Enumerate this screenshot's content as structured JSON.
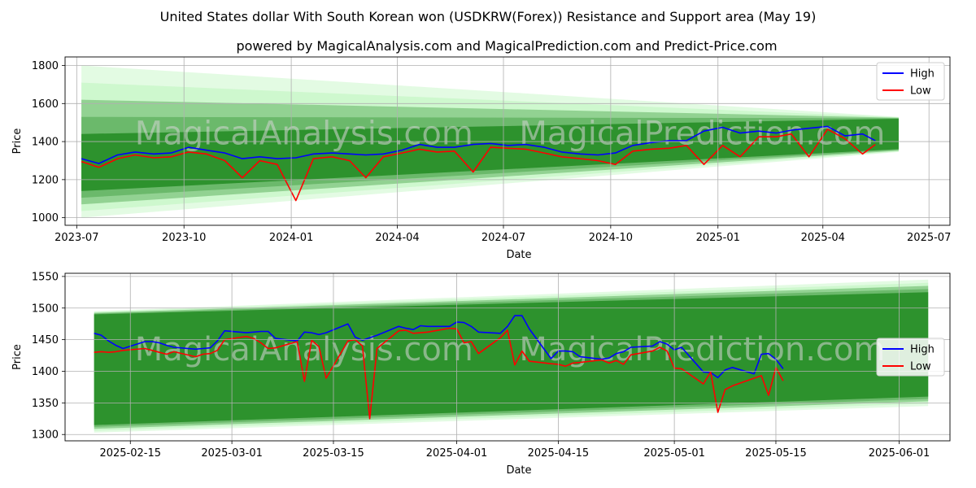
{
  "title": "United States dollar With South Korean won (USDKRW(Forex)) Resistance and Support area (May 19)",
  "subtitle": "powered by MagicalAnalysis.com and MagicalPrediction.com and Predict-Price.com",
  "watermark": {
    "left": "MagicalAnalysis.com",
    "right": "MagicalPrediction.com"
  },
  "colors": {
    "high": "#0000ff",
    "low": "#ff0000",
    "band_dark": "#228b22",
    "band_light": "#90ee90"
  },
  "chart_data": [
    {
      "type": "line",
      "xlabel": "Date",
      "ylabel": "Price",
      "x_ticks": [
        "2023-07",
        "2023-10",
        "2024-01",
        "2024-04",
        "2024-07",
        "2024-10",
        "2025-01",
        "2025-04",
        "2025-07"
      ],
      "y_ticks": [
        1000,
        1200,
        1400,
        1600,
        1800
      ],
      "xlim": [
        "2023-06-21",
        "2025-07-19"
      ],
      "ylim": [
        960,
        1845
      ],
      "grid": true,
      "legend": "top-right",
      "bands": {
        "x": [
          "2023-07-05",
          "2025-06-05"
        ],
        "outer_top": [
          1800,
          1530
        ],
        "outer_bottom": [
          1000,
          1345
        ],
        "inner_top": [
          1440,
          1520
        ],
        "inner_bottom": [
          1140,
          1360
        ]
      },
      "series": [
        {
          "name": "High",
          "x": [
            "2023-07-05",
            "2023-07-20",
            "2023-08-05",
            "2023-08-20",
            "2023-09-05",
            "2023-09-20",
            "2023-10-05",
            "2023-10-20",
            "2023-11-05",
            "2023-11-20",
            "2023-12-05",
            "2023-12-20",
            "2024-01-05",
            "2024-01-20",
            "2024-02-05",
            "2024-02-20",
            "2024-03-05",
            "2024-03-20",
            "2024-04-05",
            "2024-04-20",
            "2024-05-05",
            "2024-05-20",
            "2024-06-05",
            "2024-06-20",
            "2024-07-05",
            "2024-07-20",
            "2024-08-05",
            "2024-08-20",
            "2024-09-05",
            "2024-09-20",
            "2024-10-05",
            "2024-10-20",
            "2024-11-05",
            "2024-11-20",
            "2024-12-05",
            "2024-12-20",
            "2025-01-05",
            "2025-01-20",
            "2025-02-05",
            "2025-02-20",
            "2025-03-05",
            "2025-03-20",
            "2025-04-05",
            "2025-04-20",
            "2025-05-05",
            "2025-05-16"
          ],
          "values": [
            1310,
            1285,
            1330,
            1345,
            1335,
            1340,
            1370,
            1355,
            1340,
            1310,
            1320,
            1310,
            1315,
            1335,
            1340,
            1335,
            1330,
            1335,
            1355,
            1385,
            1370,
            1370,
            1385,
            1390,
            1380,
            1385,
            1370,
            1345,
            1335,
            1330,
            1340,
            1380,
            1395,
            1405,
            1405,
            1455,
            1475,
            1445,
            1455,
            1445,
            1460,
            1470,
            1480,
            1430,
            1440,
            1405
          ]
        },
        {
          "name": "Low",
          "x": [
            "2023-07-05",
            "2023-07-20",
            "2023-08-05",
            "2023-08-20",
            "2023-09-05",
            "2023-09-20",
            "2023-10-05",
            "2023-10-20",
            "2023-11-05",
            "2023-11-20",
            "2023-12-05",
            "2023-12-20",
            "2024-01-05",
            "2024-01-20",
            "2024-02-05",
            "2024-02-20",
            "2024-03-05",
            "2024-03-20",
            "2024-04-05",
            "2024-04-20",
            "2024-05-05",
            "2024-05-20",
            "2024-06-05",
            "2024-06-20",
            "2024-07-05",
            "2024-07-20",
            "2024-08-05",
            "2024-08-20",
            "2024-09-05",
            "2024-09-20",
            "2024-10-05",
            "2024-10-20",
            "2024-11-05",
            "2024-11-20",
            "2024-12-05",
            "2024-12-20",
            "2025-01-05",
            "2025-01-20",
            "2025-02-05",
            "2025-02-20",
            "2025-03-05",
            "2025-03-20",
            "2025-04-05",
            "2025-04-20",
            "2025-05-05",
            "2025-05-16"
          ],
          "values": [
            1295,
            1265,
            1310,
            1330,
            1315,
            1320,
            1345,
            1335,
            1300,
            1210,
            1300,
            1280,
            1090,
            1310,
            1320,
            1300,
            1210,
            1320,
            1340,
            1360,
            1345,
            1350,
            1240,
            1370,
            1365,
            1360,
            1340,
            1320,
            1310,
            1300,
            1280,
            1350,
            1360,
            1365,
            1380,
            1280,
            1380,
            1320,
            1425,
            1425,
            1440,
            1320,
            1465,
            1415,
            1335,
            1385
          ]
        }
      ]
    },
    {
      "type": "line",
      "xlabel": "Date",
      "ylabel": "Price",
      "x_ticks": [
        "2025-02-15",
        "2025-03-01",
        "2025-03-15",
        "2025-04-01",
        "2025-04-15",
        "2025-05-01",
        "2025-05-15",
        "2025-06-01"
      ],
      "y_ticks": [
        1300,
        1350,
        1400,
        1450,
        1500,
        1550
      ],
      "xlim": [
        "2025-02-06",
        "2025-06-08"
      ],
      "ylim": [
        1290,
        1555
      ],
      "grid": true,
      "legend": "center-right",
      "bands": {
        "x": [
          "2025-02-10",
          "2025-06-05"
        ],
        "outer_top": [
          1495,
          1545
        ],
        "outer_bottom": [
          1303,
          1345
        ],
        "inner_top": [
          1490,
          1525
        ],
        "inner_bottom": [
          1315,
          1360
        ]
      },
      "series": [
        {
          "name": "High",
          "x": [
            "2025-02-10",
            "2025-02-11",
            "2025-02-12",
            "2025-02-13",
            "2025-02-14",
            "2025-02-17",
            "2025-02-18",
            "2025-02-19",
            "2025-02-20",
            "2025-02-21",
            "2025-02-24",
            "2025-02-25",
            "2025-02-26",
            "2025-02-27",
            "2025-02-28",
            "2025-03-03",
            "2025-03-04",
            "2025-03-05",
            "2025-03-06",
            "2025-03-07",
            "2025-03-10",
            "2025-03-11",
            "2025-03-12",
            "2025-03-13",
            "2025-03-14",
            "2025-03-17",
            "2025-03-18",
            "2025-03-19",
            "2025-03-20",
            "2025-03-21",
            "2025-03-24",
            "2025-03-25",
            "2025-03-26",
            "2025-03-27",
            "2025-03-28",
            "2025-03-31",
            "2025-04-01",
            "2025-04-02",
            "2025-04-03",
            "2025-04-04",
            "2025-04-07",
            "2025-04-08",
            "2025-04-09",
            "2025-04-10",
            "2025-04-11",
            "2025-04-14",
            "2025-04-15",
            "2025-04-16",
            "2025-04-17",
            "2025-04-18",
            "2025-04-21",
            "2025-04-22",
            "2025-04-23",
            "2025-04-24",
            "2025-04-25",
            "2025-04-28",
            "2025-04-29",
            "2025-04-30",
            "2025-05-01",
            "2025-05-02",
            "2025-05-05",
            "2025-05-06",
            "2025-05-07",
            "2025-05-08",
            "2025-05-09",
            "2025-05-12",
            "2025-05-13",
            "2025-05-14",
            "2025-05-15",
            "2025-05-16"
          ],
          "values": [
            1460,
            1457,
            1448,
            1441,
            1436,
            1447,
            1447,
            1445,
            1441,
            1438,
            1435,
            1436,
            1437,
            1448,
            1464,
            1461,
            1462,
            1463,
            1463,
            1452,
            1448,
            1462,
            1461,
            1458,
            1461,
            1475,
            1454,
            1449,
            1453,
            1457,
            1471,
            1468,
            1466,
            1472,
            1471,
            1471,
            1478,
            1477,
            1471,
            1462,
            1460,
            1471,
            1488,
            1488,
            1467,
            1420,
            1432,
            1432,
            1431,
            1423,
            1419,
            1421,
            1428,
            1431,
            1438,
            1440,
            1447,
            1443,
            1434,
            1438,
            1399,
            1398,
            1390,
            1402,
            1406,
            1396,
            1427,
            1428,
            1419,
            1404
          ]
        },
        {
          "name": "Low",
          "x": [
            "2025-02-10",
            "2025-02-11",
            "2025-02-12",
            "2025-02-13",
            "2025-02-14",
            "2025-02-17",
            "2025-02-18",
            "2025-02-19",
            "2025-02-20",
            "2025-02-21",
            "2025-02-24",
            "2025-02-25",
            "2025-02-26",
            "2025-02-27",
            "2025-02-28",
            "2025-03-03",
            "2025-03-04",
            "2025-03-05",
            "2025-03-06",
            "2025-03-07",
            "2025-03-10",
            "2025-03-11",
            "2025-03-12",
            "2025-03-13",
            "2025-03-14",
            "2025-03-17",
            "2025-03-18",
            "2025-03-19",
            "2025-03-20",
            "2025-03-21",
            "2025-03-24",
            "2025-03-25",
            "2025-03-26",
            "2025-03-27",
            "2025-03-28",
            "2025-03-31",
            "2025-04-01",
            "2025-04-02",
            "2025-04-03",
            "2025-04-04",
            "2025-04-07",
            "2025-04-08",
            "2025-04-09",
            "2025-04-10",
            "2025-04-11",
            "2025-04-14",
            "2025-04-15",
            "2025-04-16",
            "2025-04-17",
            "2025-04-18",
            "2025-04-21",
            "2025-04-22",
            "2025-04-23",
            "2025-04-24",
            "2025-04-25",
            "2025-04-28",
            "2025-04-29",
            "2025-04-30",
            "2025-05-01",
            "2025-05-02",
            "2025-05-05",
            "2025-05-06",
            "2025-05-07",
            "2025-05-08",
            "2025-05-09",
            "2025-05-12",
            "2025-05-13",
            "2025-05-14",
            "2025-05-15",
            "2025-05-16"
          ],
          "values": [
            1430,
            1431,
            1430,
            1431,
            1433,
            1436,
            1433,
            1430,
            1427,
            1431,
            1423,
            1427,
            1428,
            1433,
            1450,
            1455,
            1452,
            1445,
            1436,
            1437,
            1447,
            1384,
            1449,
            1439,
            1389,
            1448,
            1450,
            1440,
            1325,
            1436,
            1464,
            1465,
            1460,
            1461,
            1462,
            1468,
            1467,
            1445,
            1447,
            1428,
            1453,
            1465,
            1410,
            1432,
            1416,
            1412,
            1411,
            1408,
            1413,
            1414,
            1418,
            1413,
            1417,
            1411,
            1426,
            1432,
            1438,
            1432,
            1405,
            1404,
            1380,
            1399,
            1335,
            1371,
            1377,
            1389,
            1393,
            1362,
            1406,
            1385
          ]
        }
      ]
    }
  ]
}
